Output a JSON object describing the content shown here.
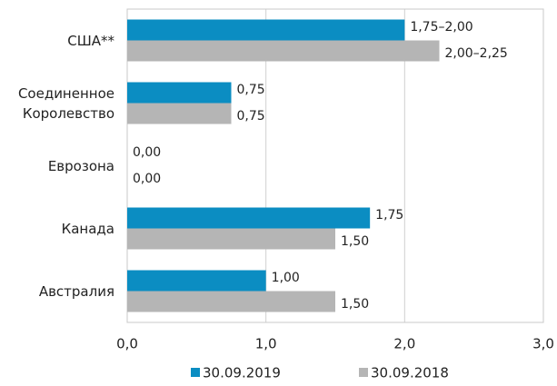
{
  "chart_data": {
    "type": "hbar",
    "categories": [
      "США**",
      "Соединенное Королевство",
      "Еврозона",
      "Канада",
      "Австралия"
    ],
    "series": [
      {
        "name": "30.09.2019",
        "color": "#0b8dc2",
        "values": [
          2.0,
          0.75,
          0.0,
          1.75,
          1.0
        ],
        "value_labels": [
          "1,75–2,00",
          "0,75",
          "0,00",
          "1,75",
          "1,00"
        ]
      },
      {
        "name": "30.09.2018",
        "color": "#b5b5b5",
        "values": [
          2.25,
          0.75,
          0.0,
          1.5,
          1.5
        ],
        "value_labels": [
          "2,00–2,25",
          "0,75",
          "0,00",
          "1,50",
          "1,50"
        ]
      }
    ],
    "xlim": [
      0,
      3
    ],
    "xticks": [
      {
        "value": 0,
        "label": "0,0"
      },
      {
        "value": 1,
        "label": "1,0"
      },
      {
        "value": 2,
        "label": "2,0"
      },
      {
        "value": 3,
        "label": "3,0"
      }
    ],
    "grid": true,
    "legend": "bottom"
  }
}
